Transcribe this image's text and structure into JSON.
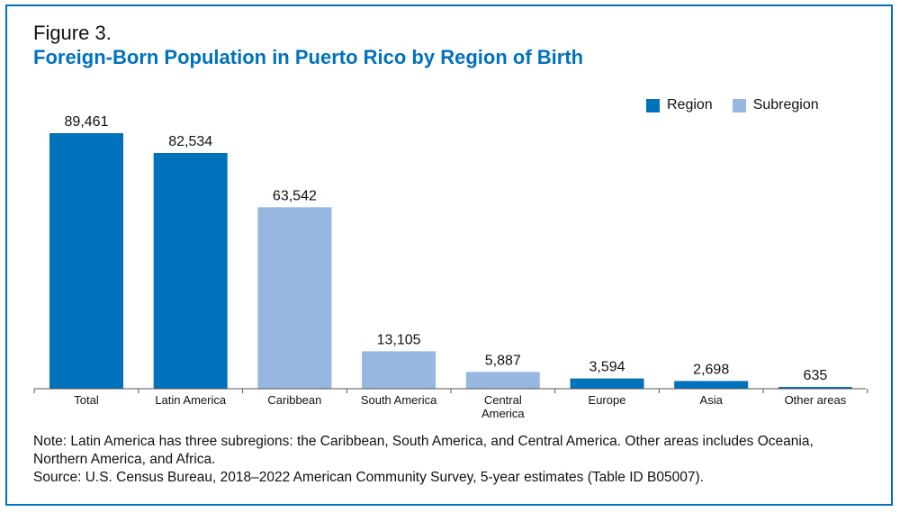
{
  "figure": {
    "label": "Figure 3.",
    "title": "Foreign-Born Population in Puerto Rico by Region of Birth"
  },
  "legend": [
    {
      "name": "Region",
      "color": "#0072bb"
    },
    {
      "name": "Subregion",
      "color": "#97b6e0"
    }
  ],
  "chart_data": {
    "type": "bar",
    "title": "Foreign-Born Population in Puerto Rico by Region of Birth",
    "categories": [
      "Total",
      "Latin America",
      "Caribbean",
      "South America",
      "Central America",
      "Europe",
      "Asia",
      "Other areas"
    ],
    "values": [
      89461,
      82534,
      63542,
      13105,
      5887,
      3594,
      2698,
      635
    ],
    "value_labels": [
      "89,461",
      "82,534",
      "63,542",
      "13,105",
      "5,887",
      "3,594",
      "2,698",
      "635"
    ],
    "kinds": [
      "Region",
      "Region",
      "Subregion",
      "Subregion",
      "Subregion",
      "Region",
      "Region",
      "Region"
    ],
    "ylim": [
      0,
      89461
    ],
    "xlabel": "",
    "ylabel": "",
    "grid": false,
    "legend_position": "top-right"
  },
  "notes": {
    "note": "Note: Latin America has three subregions: the Caribbean, South America, and Central America. Other areas includes Oceania, Northern America, and Africa.",
    "source": "Source: U.S. Census Bureau, 2018–2022 American Community Survey, 5-year estimates (Table ID B05007)."
  }
}
